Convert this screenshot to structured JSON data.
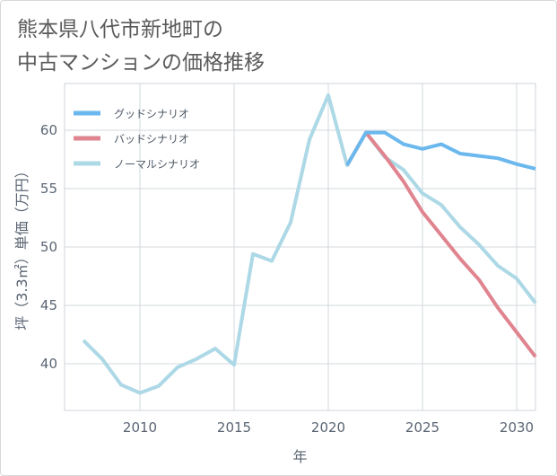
{
  "title_lines": [
    "熊本県八代市新地町の",
    "中古マンションの価格推移"
  ],
  "chart_data": {
    "type": "line",
    "title": "熊本県八代市新地町の中古マンションの価格推移",
    "xlabel": "年",
    "ylabel": "坪（3.3㎡）単価（万円）",
    "xlim": [
      2006,
      2031
    ],
    "ylim": [
      36,
      64
    ],
    "x_ticks": [
      2010,
      2015,
      2020,
      2025,
      2030
    ],
    "y_ticks": [
      40,
      45,
      50,
      55,
      60
    ],
    "grid": true,
    "legend_position": "top-left",
    "series": [
      {
        "name": "グッドシナリオ",
        "color": "#6bb8ee",
        "x": [
          2021,
          2022,
          2023,
          2024,
          2025,
          2026,
          2027,
          2028,
          2029,
          2030,
          2031
        ],
        "values": [
          57.0,
          59.8,
          59.8,
          58.8,
          58.4,
          58.8,
          58.0,
          57.8,
          57.6,
          57.1,
          56.7
        ]
      },
      {
        "name": "バッドシナリオ",
        "color": "#e0848f",
        "x": [
          2021,
          2022,
          2023,
          2024,
          2025,
          2026,
          2027,
          2028,
          2029,
          2030,
          2031
        ],
        "values": [
          57.0,
          59.8,
          57.8,
          55.6,
          53.0,
          51.0,
          49.0,
          47.2,
          44.8,
          42.7,
          40.6
        ]
      },
      {
        "name": "ノーマルシナリオ",
        "color": "#add8e6",
        "x": [
          2007,
          2008,
          2009,
          2010,
          2011,
          2012,
          2013,
          2014,
          2015,
          2016,
          2017,
          2018,
          2019,
          2020,
          2021,
          2022,
          2023,
          2024,
          2025,
          2026,
          2027,
          2028,
          2029,
          2030,
          2031
        ],
        "values": [
          42.0,
          40.4,
          38.2,
          37.5,
          38.1,
          39.7,
          40.4,
          41.3,
          39.9,
          49.4,
          48.8,
          52.1,
          59.2,
          63.0,
          57.0,
          59.8,
          57.7,
          56.6,
          54.6,
          53.6,
          51.7,
          50.2,
          48.4,
          47.3,
          45.2
        ]
      }
    ]
  }
}
